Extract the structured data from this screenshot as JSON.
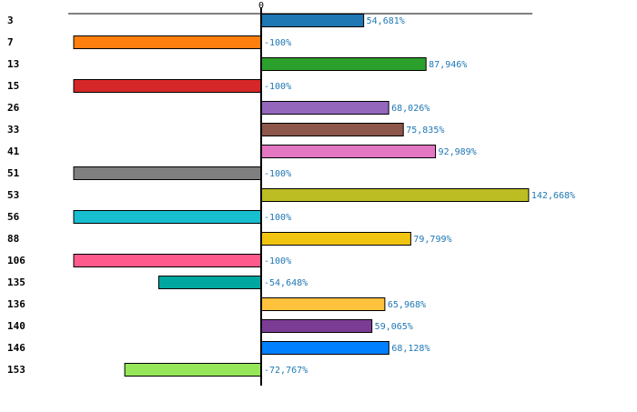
{
  "chart_data": {
    "type": "bar",
    "orientation": "horizontal",
    "zero_label": "0",
    "xlim": [
      -100,
      145
    ],
    "categories": [
      "3",
      "7",
      "13",
      "15",
      "26",
      "33",
      "41",
      "51",
      "53",
      "56",
      "88",
      "106",
      "135",
      "136",
      "140",
      "146",
      "153"
    ],
    "values": [
      54.681,
      -100,
      87.946,
      -100,
      68.026,
      75.835,
      92.989,
      -100,
      142.668,
      -100,
      79.799,
      -100,
      -54.648,
      65.968,
      59.065,
      68.128,
      -72.767
    ],
    "value_labels": [
      "54,681%",
      "-100%",
      "87,946%",
      "-100%",
      "68,026%",
      "75,835%",
      "92,989%",
      "-100%",
      "142,668%",
      "-100%",
      "79,799%",
      "-100%",
      "-54,648%",
      "65,968%",
      "59,065%",
      "68,128%",
      "-72,767%"
    ],
    "colors": [
      "#1f77b4",
      "#ff7f0e",
      "#2ca02c",
      "#d62728",
      "#9467bd",
      "#8c564b",
      "#e377c2",
      "#7f7f7f",
      "#bcbd22",
      "#17becf",
      "#f1c40f",
      "#ff5a8c",
      "#00a6a0",
      "#ffc23c",
      "#7b3c96",
      "#0080ff",
      "#96e65a"
    ],
    "label_color": "#1f77b4"
  }
}
